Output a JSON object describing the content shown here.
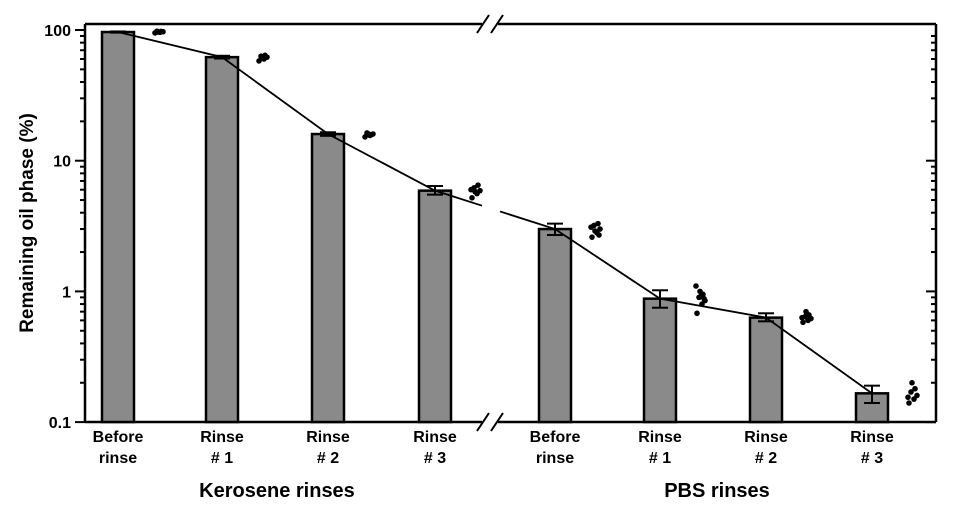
{
  "chart_data": {
    "type": "bar",
    "title": "",
    "ylabel": "Remaining oil phase (%)",
    "yscale": "log",
    "ylim": [
      0.1,
      100
    ],
    "yticks": [
      "0.1",
      "1",
      "10",
      "100"
    ],
    "grid": false,
    "groups": [
      {
        "label": "Kerosene rinses",
        "categories": [
          [
            "Before",
            "rinse"
          ],
          [
            "Rinse",
            "# 1"
          ],
          [
            "Rinse",
            "# 2"
          ],
          [
            "Rinse",
            "# 3"
          ]
        ]
      },
      {
        "label": "PBS rinses",
        "categories": [
          [
            "Before",
            "rinse"
          ],
          [
            "Rinse",
            "# 1"
          ],
          [
            "Rinse",
            "# 2"
          ],
          [
            "Rinse",
            "# 3"
          ]
        ]
      }
    ],
    "values": [
      96.5,
      62,
      16,
      5.9,
      3.0,
      0.88,
      0.63,
      0.166
    ],
    "error_low": [
      95.5,
      60.5,
      15.5,
      5.5,
      2.7,
      0.75,
      0.59,
      0.14
    ],
    "error_high": [
      97.5,
      63.5,
      16.5,
      6.4,
      3.3,
      1.02,
      0.68,
      0.19
    ],
    "points": [
      [
        95,
        96,
        97,
        98,
        97.5,
        96.5
      ],
      [
        58,
        60,
        62,
        63,
        64,
        61
      ],
      [
        15.2,
        15.6,
        16,
        16.3,
        15.8,
        16.1
      ],
      [
        5.2,
        5.6,
        5.9,
        6.2,
        6.5,
        5.8,
        6.0
      ],
      [
        2.6,
        2.8,
        3.0,
        3.2,
        3.3,
        2.9,
        3.1,
        2.7
      ],
      [
        0.68,
        0.8,
        0.85,
        0.9,
        0.95,
        1.0,
        1.1,
        0.88,
        0.92
      ],
      [
        0.58,
        0.6,
        0.62,
        0.64,
        0.66,
        0.7,
        0.63
      ],
      [
        0.14,
        0.15,
        0.16,
        0.17,
        0.18,
        0.2,
        0.155
      ]
    ],
    "colors": {
      "bar": "#8a8a8a",
      "line": "#000000",
      "points": "#000000"
    }
  }
}
